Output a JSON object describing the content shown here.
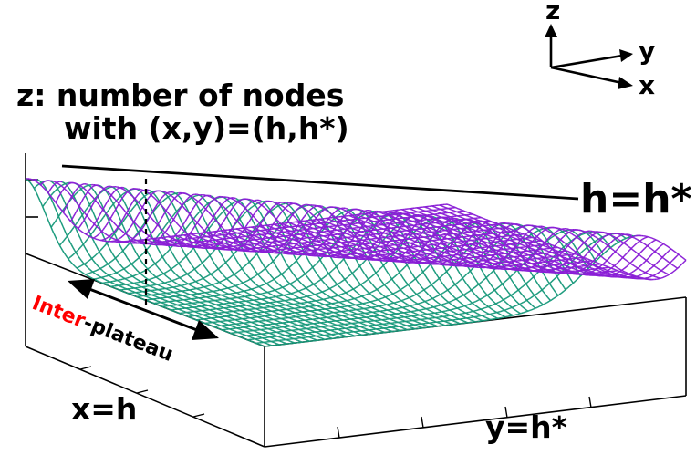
{
  "labels": {
    "z_title_line1": "z: number of nodes",
    "z_title_line2": "with (x,y)=(h,h*)",
    "ridge": "h=h*",
    "x_axis": "x=h",
    "y_axis": "y=h*",
    "axis_z": "z",
    "axis_y": "y",
    "axis_x": "x",
    "inter_prefix": "Inter",
    "inter_suffix": "-plateau"
  },
  "colors": {
    "mesh_top": "#8a1fd6",
    "mesh_side": "#1a9a7c",
    "highlight": "#ff0000",
    "ink": "#000000"
  }
}
